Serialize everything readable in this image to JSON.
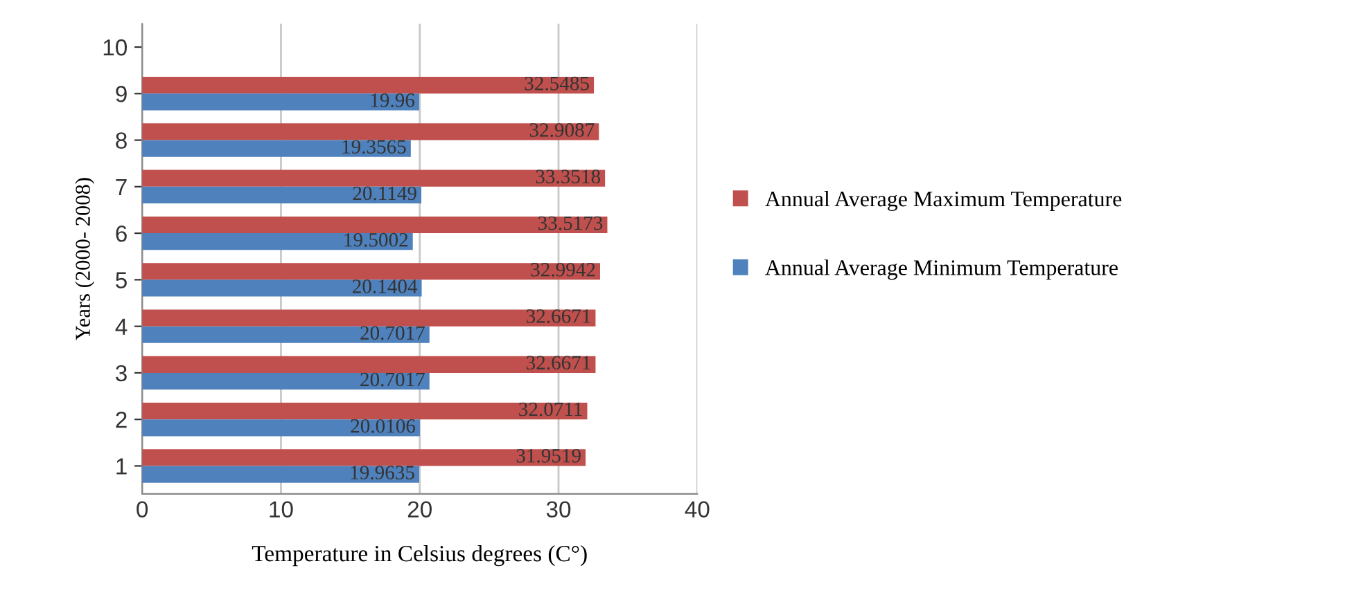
{
  "chart_data": {
    "type": "bar",
    "orientation": "horizontal",
    "xlabel": "Temperature in Celsius degrees (C°)",
    "ylabel": "Years (2000- 2008)",
    "categories": [
      "10",
      "9",
      "8",
      "7",
      "6",
      "5",
      "4",
      "3",
      "2",
      "1"
    ],
    "series": [
      {
        "name": "Annual Average Maximum Temperature",
        "color": "#c0504d",
        "values": [
          null,
          32.5485,
          32.9087,
          33.3518,
          33.5173,
          32.9942,
          32.6671,
          32.6671,
          32.0711,
          31.9519
        ]
      },
      {
        "name": "Annual Average Minimum Temperature",
        "color": "#4f81bd",
        "values": [
          null,
          19.96,
          19.3565,
          20.1149,
          19.5002,
          20.1404,
          20.7017,
          20.7017,
          20.0106,
          19.9635
        ]
      }
    ],
    "xlim": [
      0,
      40
    ],
    "xticks": [
      0,
      10,
      20,
      30,
      40
    ],
    "grid": "x",
    "legend": "right",
    "data_labels": true
  }
}
